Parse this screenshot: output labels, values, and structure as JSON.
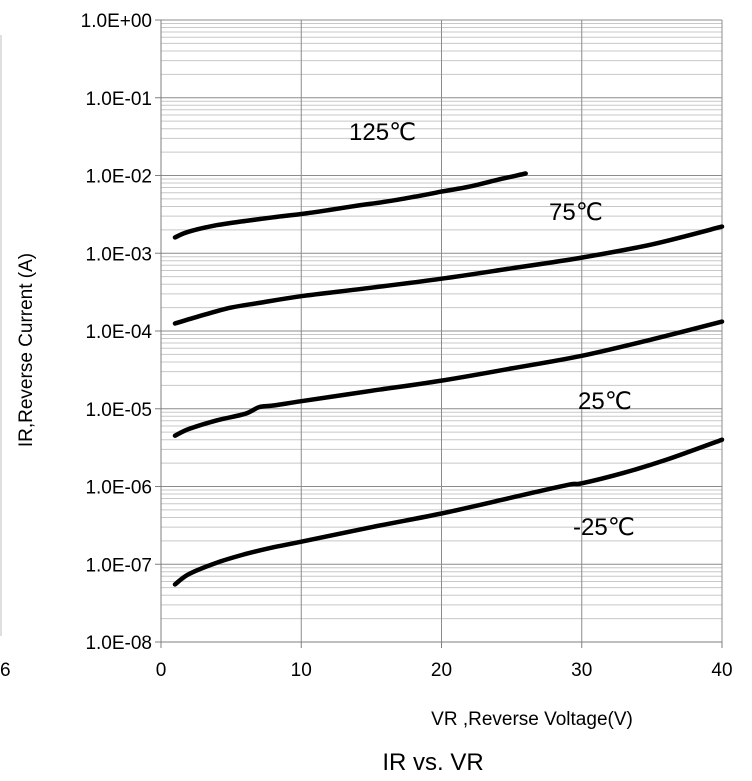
{
  "chart_data": {
    "type": "line",
    "title": "IR vs. VR",
    "xlabel": "VR ,Reverse Voltage(V)",
    "ylabel": "IR,Reverse Current (A)",
    "xlim": [
      0,
      40
    ],
    "ylim": [
      1e-08,
      1
    ],
    "y_scale": "log",
    "grid": true,
    "x_ticks": [
      "0",
      "10",
      "20",
      "30",
      "40"
    ],
    "y_ticks": [
      "1.0E-08",
      "1.0E-07",
      "1.0E-06",
      "1.0E-05",
      "1.0E-04",
      "1.0E-03",
      "1.0E-02",
      "1.0E-01",
      "1.0E+00"
    ],
    "clipped_tick_label": "6",
    "series": [
      {
        "name": "125℃",
        "x": [
          1,
          2,
          4,
          6,
          8,
          10,
          12,
          14,
          16,
          18,
          20,
          22,
          24,
          26
        ],
        "y": [
          0.0016,
          0.0019,
          0.0023,
          0.0026,
          0.0029,
          0.0032,
          0.0036,
          0.0041,
          0.0046,
          0.0053,
          0.0062,
          0.0072,
          0.0088,
          0.0106
        ]
      },
      {
        "name": "75℃",
        "x": [
          1,
          3,
          5,
          7,
          10,
          15,
          20,
          25,
          30,
          35,
          40
        ],
        "y": [
          0.000125,
          0.00016,
          0.0002,
          0.00023,
          0.00028,
          0.00036,
          0.00047,
          0.00064,
          0.00088,
          0.0013,
          0.0022
        ]
      },
      {
        "name": "25℃",
        "x": [
          1,
          2,
          4,
          6,
          7,
          8,
          10,
          15,
          20,
          25,
          30,
          35,
          40
        ],
        "y": [
          4.5e-06,
          5.5e-06,
          7.1e-06,
          8.6e-06,
          1.05e-05,
          1.1e-05,
          1.25e-05,
          1.7e-05,
          2.3e-05,
          3.3e-05,
          4.8e-05,
          7.8e-05,
          0.000132
        ]
      },
      {
        "name": "-25℃",
        "x": [
          1,
          2,
          4,
          6,
          8,
          10,
          15,
          20,
          25,
          29,
          30,
          33,
          36,
          40
        ],
        "y": [
          5.5e-08,
          7.5e-08,
          1.05e-07,
          1.35e-07,
          1.65e-07,
          1.95e-07,
          3e-07,
          4.5e-07,
          7.2e-07,
          1.05e-06,
          1.1e-06,
          1.5e-06,
          2.2e-06,
          4e-06
        ]
      }
    ]
  }
}
